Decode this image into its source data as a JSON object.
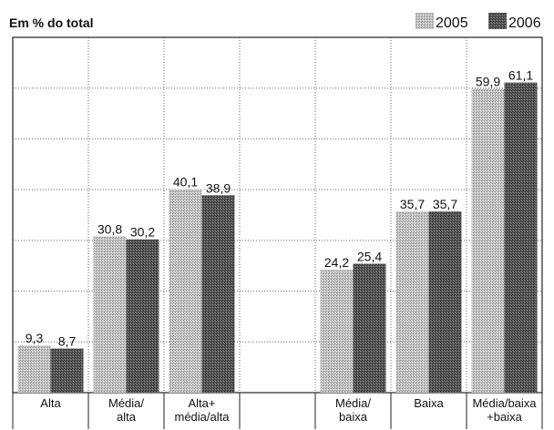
{
  "chart_data": {
    "type": "bar",
    "title": "Em % do total",
    "xlabel": "",
    "ylabel": "",
    "ylim": [
      0,
      70
    ],
    "grid": true,
    "legend_position": "top-right",
    "categories": [
      [
        "Alta"
      ],
      [
        "Média/",
        "alta"
      ],
      [
        "Alta+",
        "média/alta"
      ],
      [
        ""
      ],
      [
        "Média/",
        "baixa"
      ],
      [
        "Baixa"
      ],
      [
        "Média/baixa",
        "+baixa"
      ]
    ],
    "series": [
      {
        "name": "2005",
        "color": "#b3b3b3",
        "values": [
          9.3,
          30.8,
          40.1,
          null,
          24.2,
          35.7,
          59.9
        ],
        "labels": [
          "9,3",
          "30,8",
          "40,1",
          "",
          "24,2",
          "35,7",
          "59,9"
        ]
      },
      {
        "name": "2006",
        "color": "#555555",
        "values": [
          8.7,
          30.2,
          38.9,
          null,
          25.4,
          35.7,
          61.1
        ],
        "labels": [
          "8,7",
          "30,2",
          "38,9",
          "",
          "25,4",
          "35,7",
          "61,1"
        ]
      }
    ]
  }
}
